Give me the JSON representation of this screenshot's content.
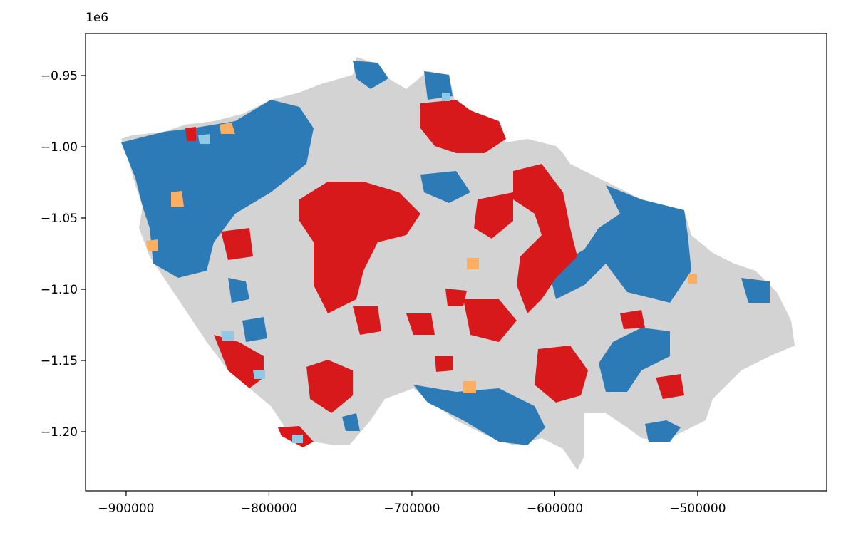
{
  "chart_data": {
    "type": "map",
    "y_offset_label": "1e6",
    "xlim": [
      -928400,
      -409700
    ],
    "ylim": [
      -1.2415,
      -0.9205
    ],
    "xticks": [
      {
        "value": -900000,
        "label": "−900000"
      },
      {
        "value": -800000,
        "label": "−800000"
      },
      {
        "value": -700000,
        "label": "−700000"
      },
      {
        "value": -600000,
        "label": "−600000"
      },
      {
        "value": -500000,
        "label": "−500000"
      }
    ],
    "yticks": [
      {
        "value": -0.95,
        "label": "−0.95"
      },
      {
        "value": -1.0,
        "label": "−1.00"
      },
      {
        "value": -1.05,
        "label": "−1.05"
      },
      {
        "value": -1.1,
        "label": "−1.10"
      },
      {
        "value": -1.15,
        "label": "−1.15"
      },
      {
        "value": -1.2,
        "label": "−1.20"
      }
    ]
  }
}
